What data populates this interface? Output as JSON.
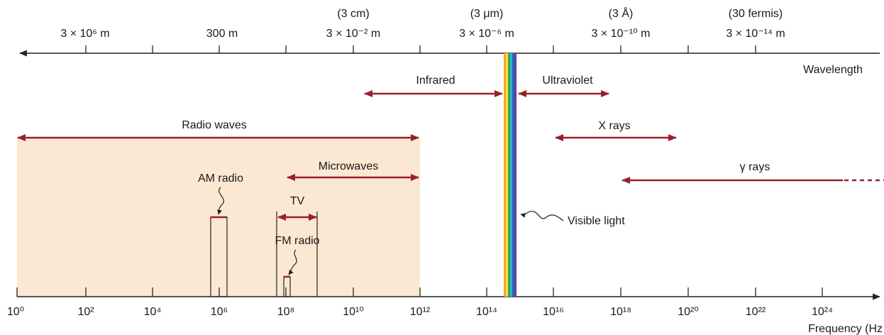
{
  "colors": {
    "band_arrow": "#9a1f2c",
    "radio_fill": "#fbe8d3",
    "axis": "#222222",
    "spectrum": [
      "#f3a52b",
      "#f7e23a",
      "#3aa84d",
      "#2fb1c9",
      "#2466b8",
      "#6a3aa0"
    ]
  },
  "wavelength_axis": {
    "name": "Wavelength",
    "labels": [
      {
        "id": "w1",
        "value": "3 × 10⁶ m",
        "note": ""
      },
      {
        "id": "w2",
        "value": "300  m",
        "note": ""
      },
      {
        "id": "w3",
        "value": "3 × 10⁻² m",
        "note": "(3  cm)"
      },
      {
        "id": "w4",
        "value": "3 × 10⁻⁶ m",
        "note": "(3 μm)"
      },
      {
        "id": "w5",
        "value": "3 × 10⁻¹⁰ m",
        "note": "(3 Å)"
      },
      {
        "id": "w6",
        "value": "3 × 10⁻¹⁴ m",
        "note": "(30 fermis)"
      }
    ]
  },
  "frequency_axis": {
    "name": "Frequency  (Hz",
    "labels": [
      "10⁰",
      "10²",
      "10⁴",
      "10⁶",
      "10⁸",
      "10¹⁰",
      "10¹²",
      "10¹⁴",
      "10¹⁶",
      "10¹⁸",
      "10²⁰",
      "10²²",
      "10²⁴"
    ]
  },
  "bands": {
    "radio_waves": "Radio waves",
    "microwaves": "Microwaves",
    "infrared": "Infrared",
    "ultraviolet": "Ultraviolet",
    "x_rays": "X rays",
    "gamma_rays": "γ rays",
    "visible_light": "Visible light",
    "am_radio": "AM radio",
    "tv": "TV",
    "fm_radio": "FM radio"
  }
}
